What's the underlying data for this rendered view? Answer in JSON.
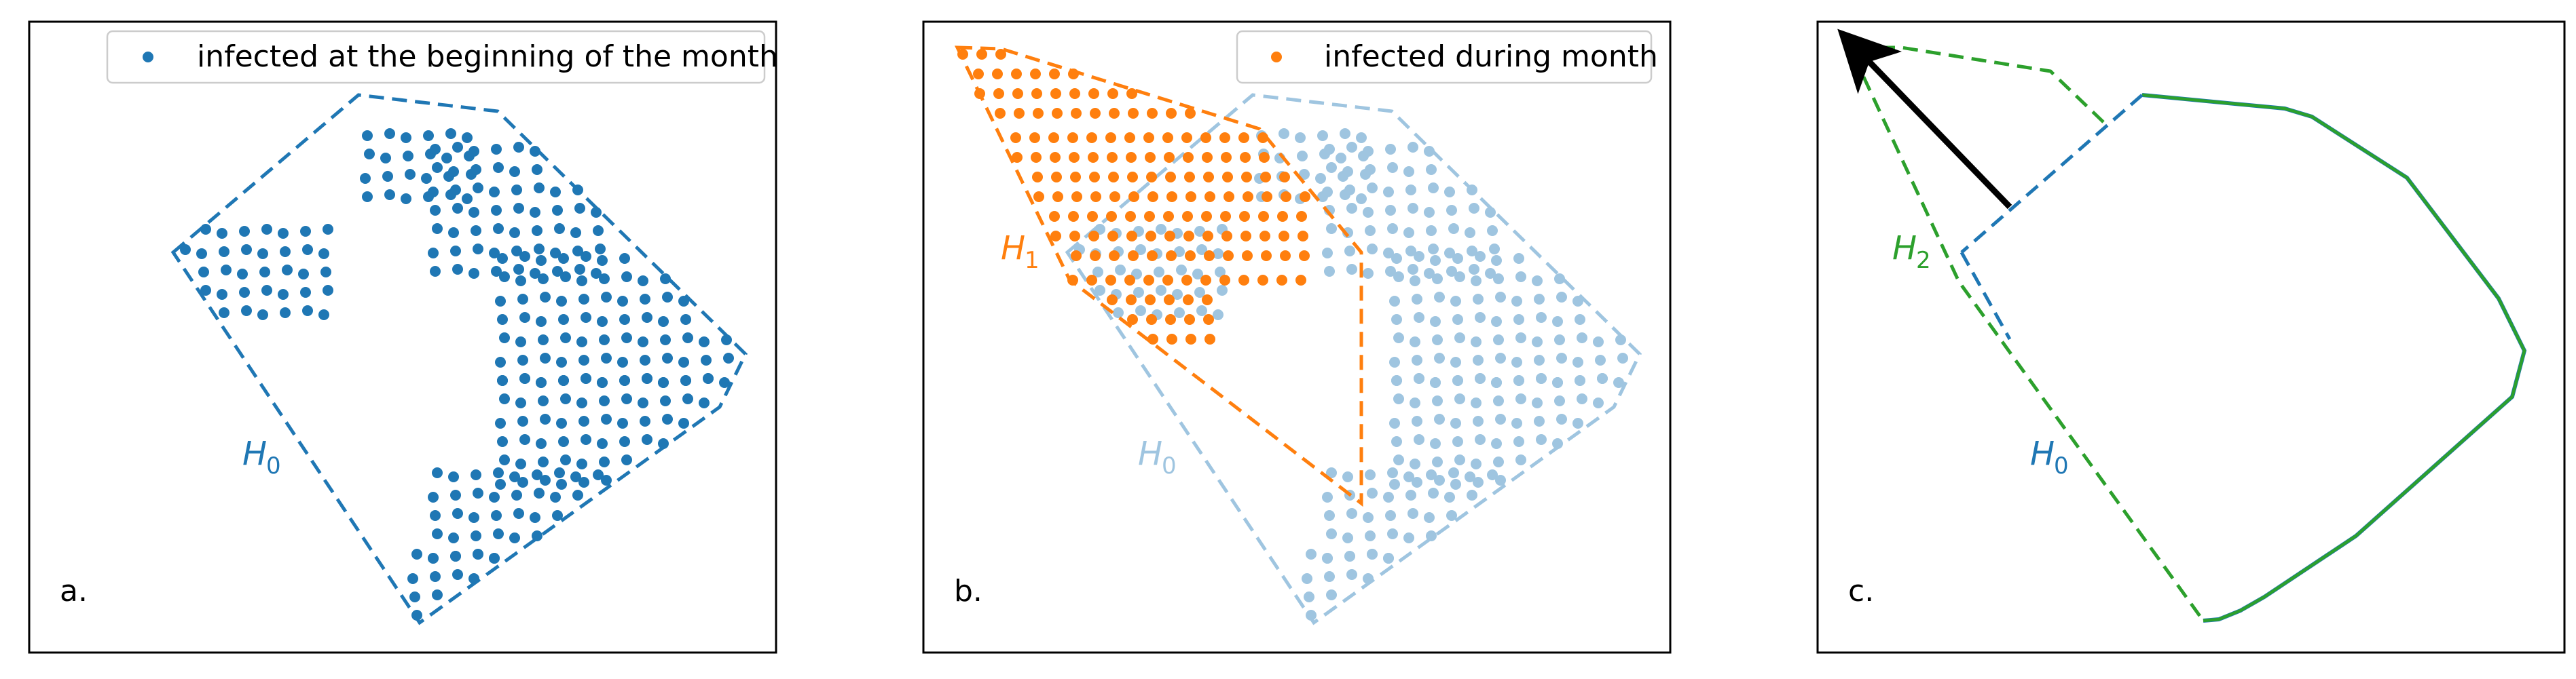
{
  "colors": {
    "initial": "#1f77b4",
    "monthly": "#ff7f0e",
    "hull2": "#2ca02c",
    "faded": "#9fc5e0",
    "arrow": "#000000"
  },
  "panels": [
    {
      "label": "a.",
      "legend": "infected at the beginning of the month",
      "hull_label": "H0"
    },
    {
      "label": "b.",
      "legend": "infected during month",
      "hull_label_new": "H1",
      "hull_label_old": "H0"
    },
    {
      "label": "c.",
      "hull_label_new": "H2",
      "hull_label_old": "H0"
    }
  ]
}
